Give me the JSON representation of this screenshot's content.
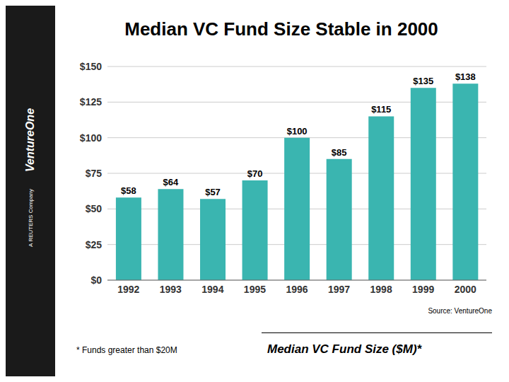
{
  "chart_data": {
    "type": "bar",
    "title": "Median VC Fund Size Stable in 2000",
    "categories": [
      "1992",
      "1993",
      "1994",
      "1995",
      "1996",
      "1997",
      "1998",
      "1999",
      "2000"
    ],
    "values": [
      58,
      64,
      57,
      70,
      100,
      85,
      115,
      135,
      138
    ],
    "value_labels": [
      "$58",
      "$64",
      "$57",
      "$70",
      "$100",
      "$85",
      "$115",
      "$135",
      "$138"
    ],
    "data_labels": true,
    "color": "#3ab5b0",
    "ylim": [
      0,
      150
    ],
    "yticks": [
      {
        "value": 0,
        "label": "$0"
      },
      {
        "value": 25,
        "label": "$25"
      },
      {
        "value": 50,
        "label": "$50"
      },
      {
        "value": 75,
        "label": "$75"
      },
      {
        "value": 100,
        "label": "$100"
      },
      {
        "value": 125,
        "label": "$125"
      },
      {
        "value": 150,
        "label": "$150"
      }
    ],
    "grid": true,
    "annotations": [
      "VentureOne",
      "A REUTERS Company",
      "Source: VentureOne",
      "* Funds greater than $20M",
      "Median VC Fund Size ($M)*"
    ]
  }
}
